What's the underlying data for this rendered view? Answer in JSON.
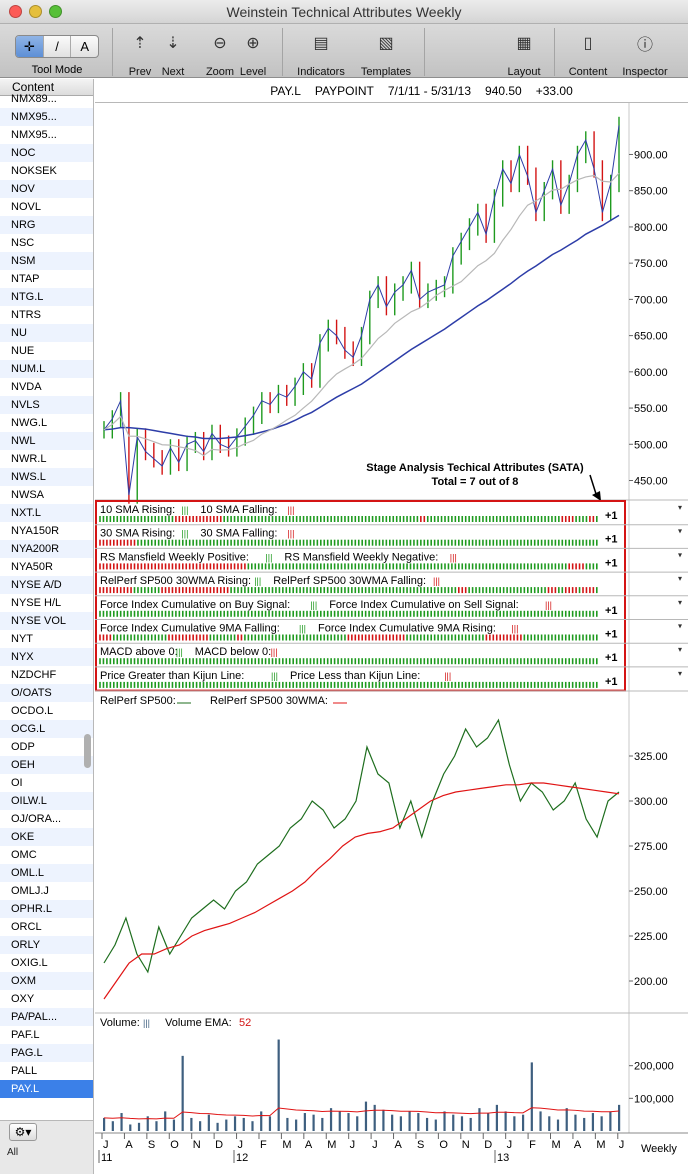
{
  "window": {
    "title": "Weinstein Technical Attributes Weekly"
  },
  "toolbar": {
    "tool_mode_label": "Tool Mode",
    "tool_glyphs": [
      "✛",
      "/",
      "A"
    ],
    "prev_label": "Prev",
    "next_label": "Next",
    "zoom_label": "Zoom",
    "level_label": "Level",
    "indicators_label": "Indicators",
    "templates_label": "Templates",
    "layout_label": "Layout",
    "content_label": "Content",
    "inspector_label": "Inspector"
  },
  "sidebar": {
    "header": "Content",
    "items": [
      "NMX89...",
      "NMX95...",
      "NMX95...",
      "NOC",
      "NOKSEK",
      "NOV",
      "NOVL",
      "NRG",
      "NSC",
      "NSM",
      "NTAP",
      "NTG.L",
      "NTRS",
      "NU",
      "NUE",
      "NUM.L",
      "NVDA",
      "NVLS",
      "NWG.L",
      "NWL",
      "NWR.L",
      "NWS.L",
      "NWSA",
      "NXT.L",
      "NYA150R",
      "NYA200R",
      "NYA50R",
      "NYSE A/D",
      "NYSE H/L",
      "NYSE VOL",
      "NYT",
      "NYX",
      "NZDCHF",
      "O/OATS",
      "OCDO.L",
      "OCG.L",
      "ODP",
      "OEH",
      "OI",
      "OILW.L",
      "OJ/ORA...",
      "OKE",
      "OMC",
      "OML.L",
      "OMLJ.J",
      "OPHR.L",
      "ORCL",
      "ORLY",
      "OXIG.L",
      "OXM",
      "OXY",
      "PA/PAL...",
      "PAF.L",
      "PAG.L",
      "PALL",
      "PAY.L"
    ],
    "selected": "PAY.L",
    "bottom_label": "All",
    "gear_glyph": "⚙▾"
  },
  "chart_header": {
    "symbol": "PAY.L",
    "name": "PAYPOINT",
    "range": "7/1/11 - 5/31/13",
    "price": "940.50",
    "change": "+33.00"
  },
  "annotation": {
    "line1": "Stage Analysis Techical Attributes (SATA)",
    "line2": "Total = 7 out of 8"
  },
  "sata_rows": [
    {
      "label": "10 SMA Rising:",
      "label2": "10 SMA Falling:",
      "score": "+1",
      "reds": [
        22,
        23,
        24,
        25,
        26,
        27,
        28,
        29,
        30,
        31,
        32,
        33,
        34,
        35,
        93,
        94,
        134,
        135,
        136,
        137,
        142,
        143
      ]
    },
    {
      "label": "30 SMA Rising:",
      "label2": "30 SMA Falling:",
      "score": "+1",
      "reds": [
        0,
        1,
        2,
        3,
        4,
        5,
        6,
        7,
        8,
        9,
        10
      ]
    },
    {
      "label": "RS Mansfield Weekly Positive:",
      "label2": "RS Mansfield Weekly Negative:",
      "score": "+1",
      "reds": [
        0,
        1,
        2,
        3,
        4,
        5,
        6,
        7,
        8,
        9,
        10,
        11,
        12,
        13,
        14,
        15,
        16,
        17,
        18,
        19,
        20,
        21,
        22,
        23,
        24,
        25,
        26,
        27,
        28,
        29,
        30,
        31,
        32,
        33,
        34,
        35,
        36,
        37,
        38,
        39,
        40,
        41,
        42,
        136,
        137,
        138,
        139,
        140
      ]
    },
    {
      "label": "RelPerf SP500 30WMA Rising:",
      "label2": "RelPerf SP500 30WMA Falling:",
      "score": "",
      "reds": [
        0,
        1,
        2,
        3,
        4,
        5,
        6,
        7,
        8,
        9,
        18,
        19,
        20,
        21,
        22,
        23,
        24,
        25,
        26,
        27,
        28,
        29,
        30,
        31,
        32,
        33,
        34,
        35,
        36,
        37,
        104,
        105,
        106,
        130,
        131,
        132,
        135,
        136,
        137,
        138,
        140,
        141,
        142,
        143
      ]
    },
    {
      "label": "Force Index Cumulative on Buy Signal:",
      "label2": "Force Index Cumulative on Sell Signal:",
      "score": "+1",
      "reds": []
    },
    {
      "label": "Force Index Cumulative 9MA Falling:",
      "label2": "Force Index Cumulative 9MA Rising:",
      "score": "+1",
      "reds": [
        0,
        1,
        2,
        3,
        20,
        21,
        22,
        23,
        24,
        25,
        26,
        27,
        28,
        29,
        30,
        31,
        40,
        41,
        72,
        73,
        74,
        75,
        76,
        77,
        78,
        79,
        80,
        81,
        82,
        83,
        84,
        85,
        86,
        87,
        88,
        112,
        113,
        114,
        115,
        116,
        117,
        118,
        119,
        120,
        121,
        122
      ]
    },
    {
      "label": "MACD above 0:",
      "label2": "MACD below 0:",
      "score": "+1",
      "reds": []
    },
    {
      "label": "Price Greater than Kijun Line:",
      "label2": "Price Less than Kijun Line:",
      "score": "+1",
      "reds": []
    }
  ],
  "price_axis": [
    "900.00",
    "850.00",
    "800.00",
    "750.00",
    "700.00",
    "650.00",
    "600.00",
    "550.00",
    "500.00",
    "450.00"
  ],
  "relperf": {
    "label1": "RelPerf SP500:",
    "label2": "RelPerf SP500 30WMA:",
    "axis": [
      "325.00",
      "300.00",
      "275.00",
      "250.00",
      "225.00",
      "200.00"
    ]
  },
  "volume": {
    "label1": "Volume:",
    "label2": "Volume EMA:",
    "ema_value": "52",
    "axis": [
      "200,000",
      "100,000"
    ]
  },
  "time_axis": {
    "months": [
      "J",
      "A",
      "S",
      "O",
      "N",
      "D",
      "J",
      "F",
      "M",
      "A",
      "M",
      "J",
      "J",
      "A",
      "S",
      "O",
      "N",
      "D",
      "J",
      "F",
      "M",
      "A",
      "M",
      "J"
    ],
    "years": [
      "11",
      "12",
      "13"
    ],
    "period_label": "Weekly"
  },
  "colors": {
    "up": "#1e9a1e",
    "down": "#d31414",
    "sma10": "#2d3da8",
    "sma30_light": "#b8b8b8",
    "rel": "#1e6e1e",
    "rel_ma": "#e01414",
    "vol": "#3e5f7f",
    "box": "#d41414"
  },
  "chart_data": {
    "type": "line",
    "title": "PAY.L PAYPOINT 7/1/11 - 5/31/13",
    "price_close_weekly": [
      520,
      535,
      560,
      430,
      510,
      490,
      480,
      470,
      495,
      475,
      500,
      505,
      490,
      515,
      500,
      495,
      510,
      525,
      540,
      560,
      555,
      570,
      565,
      580,
      600,
      590,
      640,
      660,
      650,
      630,
      620,
      650,
      700,
      720,
      690,
      710,
      720,
      740,
      700,
      710,
      715,
      720,
      760,
      780,
      800,
      820,
      790,
      840,
      880,
      860,
      900,
      870,
      820,
      850,
      880,
      830,
      860,
      900,
      920,
      880,
      820,
      860,
      940
    ],
    "sma_slow": [
      520,
      521,
      523,
      523,
      522,
      521,
      519,
      517,
      515,
      513,
      511,
      510,
      508,
      508,
      508,
      509,
      510,
      512,
      514,
      517,
      520,
      524,
      528,
      533,
      539,
      544,
      551,
      558,
      565,
      571,
      577,
      583,
      591,
      599,
      607,
      615,
      623,
      631,
      638,
      645,
      652,
      659,
      667,
      675,
      683,
      691,
      698,
      706,
      714,
      722,
      731,
      739,
      746,
      754,
      762,
      768,
      775,
      782,
      790,
      796,
      802,
      809,
      816
    ],
    "relperf": [
      210,
      220,
      235,
      215,
      205,
      230,
      215,
      225,
      235,
      240,
      245,
      240,
      250,
      255,
      265,
      270,
      275,
      285,
      290,
      300,
      295,
      285,
      290,
      300,
      330,
      315,
      310,
      285,
      300,
      280,
      300,
      315,
      325,
      340,
      330,
      335,
      345,
      320,
      300,
      310,
      305,
      295,
      300,
      310,
      290,
      280,
      300,
      305
    ],
    "relperf_30wma": [
      190,
      200,
      210,
      215,
      215,
      218,
      220,
      225,
      228,
      230,
      232,
      235,
      238,
      242,
      246,
      250,
      255,
      262,
      268,
      275,
      280,
      282,
      283,
      285,
      290,
      295,
      300,
      303,
      305,
      306,
      307,
      308,
      309,
      309,
      310,
      310,
      309,
      308,
      307,
      306,
      305,
      304
    ],
    "volume_weekly": [
      40000,
      30000,
      55000,
      20000,
      25000,
      45000,
      30000,
      60000,
      35000,
      230000,
      40000,
      30000,
      50000,
      25000,
      35000,
      45000,
      40000,
      30000,
      60000,
      45000,
      280000,
      40000,
      35000,
      55000,
      50000,
      40000,
      70000,
      60000,
      55000,
      45000,
      90000,
      80000,
      65000,
      50000,
      45000,
      60000,
      55000,
      40000,
      35000,
      60000,
      50000,
      45000,
      40000,
      70000,
      55000,
      80000,
      60000,
      45000,
      50000,
      210000,
      60000,
      45000,
      35000,
      70000,
      50000,
      40000,
      55000,
      45000,
      60000,
      80000
    ],
    "ylim_price": [
      430,
      960
    ],
    "ylim_relperf": [
      185,
      350
    ],
    "ylim_volume": [
      0,
      300000
    ]
  }
}
